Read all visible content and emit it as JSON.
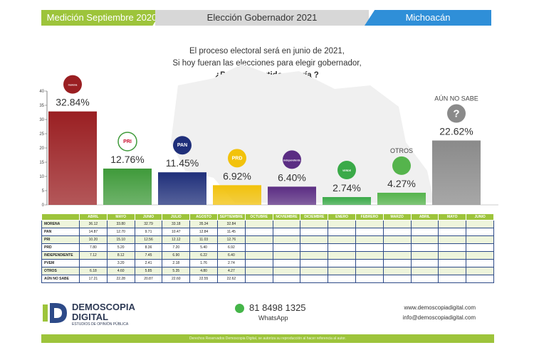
{
  "header": {
    "left": "Medición Septiembre 2020",
    "center": "Elección Gobernador 2021",
    "right": "Michoacán"
  },
  "question": {
    "line1": "El proceso electoral será en junio de 2021,",
    "line2": "Si hoy fueran las elecciones para elegir gobernador,",
    "line3": "¿Por cuál partido votaría ?"
  },
  "chart_data": {
    "type": "bar",
    "categories": [
      "Morena",
      "PRI",
      "PAN",
      "PRD",
      "Independiente",
      "PVEM",
      "Otros",
      "Aún no sabe"
    ],
    "values": [
      32.84,
      12.76,
      11.45,
      6.92,
      6.4,
      2.74,
      4.27,
      22.62
    ],
    "value_labels": [
      "32.84%",
      "12.76%",
      "11.45%",
      "6.92%",
      "6.40%",
      "2.74%",
      "4.27%",
      "22.62%"
    ],
    "bar_titles": [
      "",
      "",
      "",
      "",
      "",
      "",
      "OTROS",
      "AÚN NO SABE"
    ],
    "icon_text": [
      "morena",
      "PRI",
      "PAN",
      "PRD",
      "independiente",
      "VERDE",
      "",
      "?"
    ],
    "icon_names": [
      "morena-logo-icon",
      "pri-logo-icon",
      "pan-logo-icon",
      "prd-logo-icon",
      "independiente-logo-icon",
      "pvem-logo-icon",
      "user-icon",
      "question-icon"
    ],
    "colors": [
      "#9a1f22",
      "#3f9a3a",
      "#1f2f7a",
      "#f2c20c",
      "#5b2d83",
      "#3aaa48",
      "#55b44c",
      "#8a8a8a"
    ],
    "ylim": [
      0,
      40
    ],
    "yticks": [
      0,
      5,
      10,
      15,
      20,
      25,
      30,
      35,
      40
    ]
  },
  "table": {
    "headers": [
      "",
      "ABRIL",
      "MAYO",
      "JUNIO",
      "JULIO",
      "AGOSTO",
      "SEPTIEMBRE",
      "OCTUBRE",
      "NOVIEMBRE",
      "DICIEMBRE",
      "ENERO",
      "FEBRERO",
      "MARZO",
      "ABRIL",
      "MAYO",
      "JUNIO"
    ],
    "rows": [
      [
        "MORENA",
        "36.12",
        "33.80",
        "32.79",
        "33.18",
        "35.34",
        "32.84",
        "",
        "",
        "",
        "",
        "",
        "",
        "",
        "",
        ""
      ],
      [
        "PAN",
        "14.87",
        "12.70",
        "9.71",
        "10.47",
        "12.84",
        "11.45",
        "",
        "",
        "",
        "",
        "",
        "",
        "",
        "",
        ""
      ],
      [
        "PRI",
        "10.20",
        "15.10",
        "12.56",
        "12.12",
        "11.03",
        "12.76",
        "",
        "",
        "",
        "",
        "",
        "",
        "",
        "",
        ""
      ],
      [
        "PRD",
        "7.80",
        "5.20",
        "8.36",
        "7.20",
        "5.40",
        "6.92",
        "",
        "",
        "",
        "",
        "",
        "",
        "",
        "",
        ""
      ],
      [
        "INDEPENDIENTE",
        "7.12",
        "8.12",
        "7.45",
        "6.90",
        "6.22",
        "6.40",
        "",
        "",
        "",
        "",
        "",
        "",
        "",
        "",
        ""
      ],
      [
        "PVEM",
        "",
        "3.20",
        "2.41",
        "2.18",
        "1.76",
        "2.74",
        "",
        "",
        "",
        "",
        "",
        "",
        "",
        "",
        ""
      ],
      [
        "OTROS",
        "6.18",
        "4.60",
        "5.85",
        "5.35",
        "4.80",
        "4.27",
        "",
        "",
        "",
        "",
        "",
        "",
        "",
        "",
        ""
      ],
      [
        "AÚN NO SABE",
        "17.21",
        "22.28",
        "20.87",
        "22.60",
        "22.55",
        "22.62",
        "",
        "",
        "",
        "",
        "",
        "",
        "",
        "",
        ""
      ]
    ]
  },
  "footer": {
    "brand_line1": "DEMOSCOPIA",
    "brand_line2": "DIGITAL",
    "brand_tagline": "ESTUDIOS DE OPINIÓN PÚBLICA",
    "phone": "81 8498 1325",
    "whatsapp": "WhatsApp",
    "website": "www.demoscopiadigital.com",
    "email": "info@demoscopiadigital.com",
    "rights": "Derechos Reservados Demoscopia Digital, se autoriza su reproducción al hacer referencia al autor."
  },
  "colors": {
    "green": "#9dc43b",
    "blue": "#2f8fd8",
    "navy": "#2d4a88"
  }
}
